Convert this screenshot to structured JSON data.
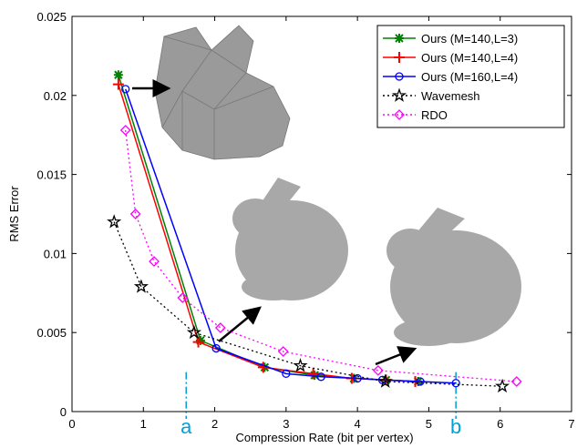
{
  "chart_data": {
    "type": "line",
    "xlabel": "Compression Rate (bit per vertex)",
    "ylabel": "RMS Error",
    "xlim": [
      0,
      7
    ],
    "xticks": [
      0,
      1,
      2,
      3,
      4,
      5,
      6,
      7
    ],
    "ylim": [
      0,
      0.025
    ],
    "yticks": [
      0,
      0.005,
      0.01,
      0.015,
      0.02,
      0.025
    ],
    "legend": "top-right",
    "series": [
      {
        "name": "Ours (M=140,L=3)",
        "color": "#008000",
        "marker": "asterisk",
        "linestyle": "solid",
        "x": [
          0.65,
          1.8,
          2.7,
          3.4,
          3.95,
          4.4,
          4.85
        ],
        "values": [
          0.0213,
          0.0045,
          0.0028,
          0.0023,
          0.0021,
          0.002,
          0.0019
        ]
      },
      {
        "name": "Ours (M=140,L=4)",
        "color": "#ff0000",
        "marker": "plus",
        "linestyle": "solid",
        "x": [
          0.65,
          1.77,
          2.68,
          3.38,
          3.92,
          4.4,
          4.81
        ],
        "values": [
          0.0207,
          0.0044,
          0.0028,
          0.0024,
          0.0021,
          0.002,
          0.0019
        ]
      },
      {
        "name": "Ours (M=160,L=4)",
        "color": "#0000ff",
        "marker": "circle",
        "linestyle": "solid",
        "x": [
          0.75,
          2.02,
          3.0,
          3.49,
          4.0,
          4.35,
          4.88,
          5.38
        ],
        "values": [
          0.0204,
          0.004,
          0.0024,
          0.0022,
          0.0021,
          0.002,
          0.0019,
          0.0018
        ]
      },
      {
        "name": "Wavemesh",
        "color": "#000000",
        "marker": "pentagram",
        "linestyle": "dotted",
        "x": [
          0.59,
          0.97,
          1.71,
          3.2,
          4.39,
          6.03
        ],
        "values": [
          0.012,
          0.0079,
          0.005,
          0.0029,
          0.0019,
          0.0016
        ]
      },
      {
        "name": "RDO",
        "color": "#ff00ff",
        "marker": "diamond",
        "linestyle": "dotted",
        "x": [
          0.75,
          0.89,
          1.15,
          1.55,
          2.08,
          2.96,
          4.29,
          6.23
        ],
        "values": [
          0.0178,
          0.0125,
          0.0095,
          0.0072,
          0.0053,
          0.0038,
          0.0026,
          0.0019
        ]
      }
    ],
    "annotations": [
      {
        "text": "a",
        "x": 1.6
      },
      {
        "text": "b",
        "x": 5.38
      }
    ]
  }
}
